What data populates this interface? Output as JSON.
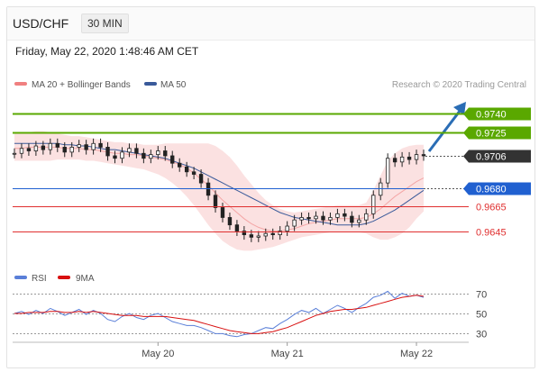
{
  "header": {
    "pair": "USD/CHF",
    "timeframe": "30 MIN"
  },
  "datetime": "Friday, May 22, 2020 1:48:46 AM CET",
  "legend": {
    "ma20": "MA 20 + Bollinger Bands",
    "ma50": "MA 50",
    "credit": "Research © 2020 Trading Central"
  },
  "rsi_legend": {
    "rsi": "RSI",
    "ma9": "9MA"
  },
  "colors": {
    "target": "#5aa800",
    "pivot": "#2060d0",
    "support": "#e03030",
    "price": "#333333",
    "bollinger": "#f8c9c9",
    "ma50": "#3a5a9a",
    "rsi": "#5a7fd8",
    "rsi_ma": "#d81010",
    "arrow": "#2a6db5"
  },
  "chart_data": [
    {
      "type": "candlestick",
      "title": "",
      "ylim": [
        0.9622,
        0.9752
      ],
      "levels": [
        {
          "label": "0.9740",
          "value": 0.974,
          "kind": "target"
        },
        {
          "label": "0.9725",
          "value": 0.9725,
          "kind": "target"
        },
        {
          "label": "0.9706",
          "value": 0.9706,
          "kind": "last-price"
        },
        {
          "label": "0.9680",
          "value": 0.968,
          "kind": "pivot"
        },
        {
          "label": "0.9665",
          "value": 0.9665,
          "kind": "support"
        },
        {
          "label": "0.9645",
          "value": 0.9645,
          "kind": "support"
        }
      ],
      "x_ticks": [
        {
          "label": "May 20",
          "bar": 20
        },
        {
          "label": "May 21",
          "bar": 38
        },
        {
          "label": "May 22",
          "bar": 56
        }
      ],
      "close": [
        0.9708,
        0.9712,
        0.971,
        0.9714,
        0.9711,
        0.9716,
        0.9713,
        0.9709,
        0.9713,
        0.9715,
        0.9711,
        0.9716,
        0.9713,
        0.9706,
        0.9704,
        0.9709,
        0.9712,
        0.9708,
        0.9704,
        0.9707,
        0.971,
        0.9706,
        0.97,
        0.9697,
        0.9693,
        0.9691,
        0.9684,
        0.9674,
        0.9664,
        0.9656,
        0.965,
        0.9645,
        0.9642,
        0.964,
        0.9641,
        0.9643,
        0.9642,
        0.9645,
        0.9649,
        0.9654,
        0.9656,
        0.9655,
        0.9657,
        0.9654,
        0.9656,
        0.9659,
        0.9657,
        0.9652,
        0.9654,
        0.9659,
        0.9674,
        0.9684,
        0.9704,
        0.9701,
        0.9705,
        0.9703,
        0.9707,
        0.9706
      ],
      "ma20": [
        0.9712,
        0.9712,
        0.9713,
        0.9713,
        0.9713,
        0.9713,
        0.9713,
        0.9712,
        0.9712,
        0.9712,
        0.9711,
        0.9711,
        0.971,
        0.9709,
        0.9708,
        0.9708,
        0.9707,
        0.9707,
        0.9706,
        0.9705,
        0.9704,
        0.9703,
        0.9701,
        0.9699,
        0.9696,
        0.9692,
        0.9687,
        0.9682,
        0.9676,
        0.967,
        0.9665,
        0.966,
        0.9655,
        0.9651,
        0.9648,
        0.9646,
        0.9645,
        0.9645,
        0.9646,
        0.9647,
        0.9649,
        0.9651,
        0.9652,
        0.9653,
        0.9654,
        0.9655,
        0.9655,
        0.9655,
        0.9655,
        0.9656,
        0.9659,
        0.9663,
        0.9668,
        0.9673,
        0.9677,
        0.9681,
        0.9685,
        0.9688
      ],
      "bb_upper": [
        0.9724,
        0.9724,
        0.9725,
        0.9726,
        0.9726,
        0.9725,
        0.9724,
        0.9723,
        0.9722,
        0.9722,
        0.9721,
        0.972,
        0.9719,
        0.9718,
        0.9717,
        0.9717,
        0.9716,
        0.9716,
        0.9715,
        0.9715,
        0.9715,
        0.9716,
        0.9716,
        0.9716,
        0.9716,
        0.9716,
        0.9716,
        0.9716,
        0.9714,
        0.971,
        0.9705,
        0.9698,
        0.969,
        0.9683,
        0.9676,
        0.967,
        0.9666,
        0.9663,
        0.9661,
        0.966,
        0.9661,
        0.9662,
        0.9663,
        0.9664,
        0.9665,
        0.9666,
        0.9666,
        0.9666,
        0.9666,
        0.9668,
        0.9678,
        0.969,
        0.9702,
        0.9708,
        0.9712,
        0.9714,
        0.9715,
        0.9715
      ],
      "bb_lower": [
        0.9702,
        0.9702,
        0.9702,
        0.9702,
        0.9702,
        0.9702,
        0.9703,
        0.9703,
        0.9703,
        0.9703,
        0.9702,
        0.9702,
        0.9701,
        0.97,
        0.9699,
        0.9698,
        0.9697,
        0.9696,
        0.9695,
        0.9693,
        0.9691,
        0.9688,
        0.9684,
        0.9679,
        0.9673,
        0.9666,
        0.9658,
        0.965,
        0.9643,
        0.9637,
        0.9633,
        0.963,
        0.9629,
        0.9629,
        0.963,
        0.9631,
        0.9632,
        0.9634,
        0.9636,
        0.9638,
        0.964,
        0.9641,
        0.9642,
        0.9643,
        0.9644,
        0.9644,
        0.9644,
        0.9644,
        0.9644,
        0.9643,
        0.964,
        0.9638,
        0.9638,
        0.964,
        0.9643,
        0.9648,
        0.9655,
        0.9661
      ],
      "ma50": [
        0.9716,
        0.9716,
        0.9716,
        0.9716,
        0.9716,
        0.9716,
        0.9716,
        0.9715,
        0.9715,
        0.9714,
        0.9714,
        0.9713,
        0.9712,
        0.9711,
        0.9711,
        0.971,
        0.9709,
        0.9708,
        0.9707,
        0.9706,
        0.9705,
        0.9704,
        0.9702,
        0.97,
        0.9698,
        0.9696,
        0.9693,
        0.969,
        0.9687,
        0.9684,
        0.9681,
        0.9678,
        0.9675,
        0.9672,
        0.9669,
        0.9666,
        0.9663,
        0.966,
        0.9658,
        0.9656,
        0.9655,
        0.9654,
        0.9653,
        0.9652,
        0.9651,
        0.965,
        0.965,
        0.965,
        0.965,
        0.9651,
        0.9653,
        0.9656,
        0.9659,
        0.9662,
        0.9666,
        0.967,
        0.9674,
        0.9678
      ]
    },
    {
      "type": "line",
      "title": "",
      "ylim": [
        25,
        75
      ],
      "y_ticks": [
        70,
        50,
        30
      ],
      "series": [
        {
          "name": "RSI",
          "values": [
            50,
            52,
            49,
            53,
            50,
            55,
            52,
            48,
            51,
            54,
            49,
            53,
            50,
            44,
            42,
            47,
            50,
            46,
            44,
            48,
            50,
            46,
            42,
            40,
            38,
            38,
            36,
            33,
            30,
            30,
            28,
            27,
            29,
            30,
            33,
            36,
            35,
            40,
            44,
            49,
            53,
            51,
            55,
            50,
            54,
            58,
            55,
            51,
            56,
            60,
            66,
            68,
            72,
            65,
            70,
            67,
            68,
            66
          ]
        },
        {
          "name": "9MA",
          "values": [
            50,
            50,
            51,
            51,
            51,
            52,
            52,
            51,
            51,
            52,
            51,
            52,
            51,
            50,
            49,
            48,
            48,
            48,
            47,
            47,
            47,
            47,
            46,
            45,
            44,
            43,
            41,
            39,
            37,
            35,
            33,
            32,
            31,
            30,
            30,
            31,
            32,
            34,
            36,
            39,
            42,
            45,
            48,
            50,
            52,
            53,
            54,
            54,
            55,
            56,
            58,
            60,
            62,
            64,
            66,
            67,
            68,
            67
          ]
        }
      ]
    }
  ]
}
